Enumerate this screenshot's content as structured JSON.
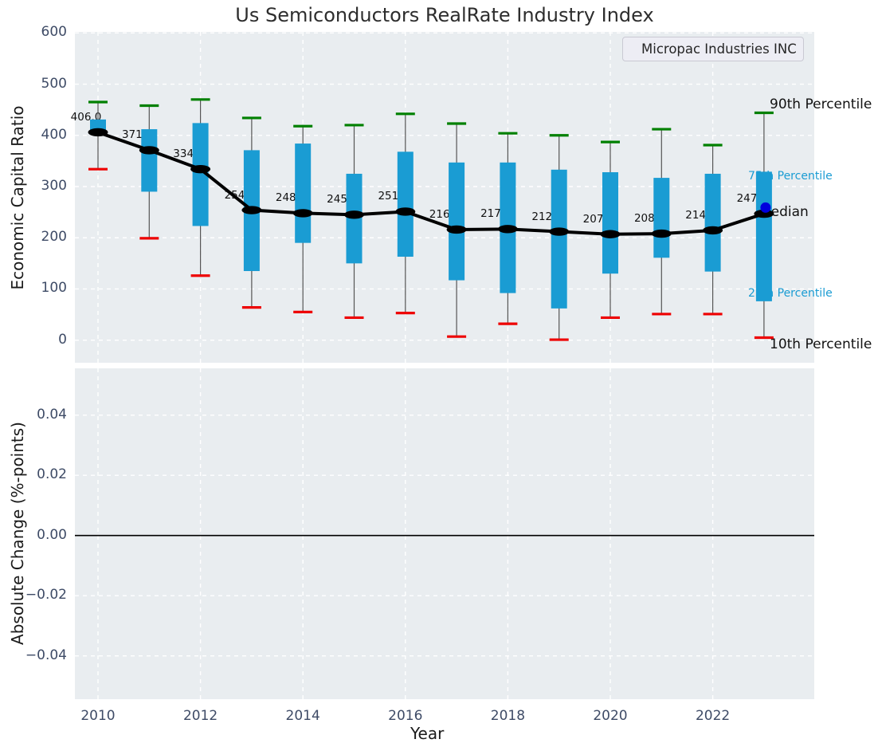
{
  "title": "Us Semiconductors RealRate Industry Index",
  "legend": {
    "label": "Micropac Industries INC",
    "line_color": "#0000f0"
  },
  "axes": {
    "x_label": "Year",
    "top_y_label": "Economic Capital Ratio",
    "bottom_y_label": "Absolute Change (%-points)"
  },
  "colors": {
    "box": "#1a9cd3",
    "p90_cap": "#008000",
    "p10_cap": "#ee0000",
    "whisker": "#555555",
    "median_line": "#000000",
    "company_dot": "#0000dd",
    "plot_bg": "#e9edf0",
    "grid": "#ffffff",
    "tick_text": "#3e4b66",
    "zero_line": "#000000",
    "cyan_label": "#1a9cd3"
  },
  "chart_data": [
    {
      "type": "boxplot-timeseries",
      "title": "Us Semiconductors RealRate Industry Index",
      "ylabel": "Economic Capital Ratio",
      "xlabel": "Year",
      "legend_entries": [
        "Micropac Industries INC"
      ],
      "ylim": [
        -44,
        600
      ],
      "xlim": [
        2009.5,
        2024
      ],
      "yticks": [
        600,
        500,
        400,
        300,
        200,
        100,
        0
      ],
      "xticks": [
        2010,
        2012,
        2014,
        2016,
        2018,
        2020,
        2022
      ],
      "grid": true,
      "series": [
        {
          "year": 2010,
          "p90": 465,
          "p75": 431,
          "median": 406,
          "p25": 402,
          "p10": 334,
          "label": "406.0"
        },
        {
          "year": 2011,
          "p90": 458,
          "p75": 412,
          "median": 371,
          "p25": 290,
          "p10": 199,
          "label": "371.0"
        },
        {
          "year": 2012,
          "p90": 470,
          "p75": 424,
          "median": 334,
          "p25": 223,
          "p10": 126,
          "label": "334.0"
        },
        {
          "year": 2013,
          "p90": 434,
          "p75": 371,
          "median": 254,
          "p25": 135,
          "p10": 64,
          "label": "254.0"
        },
        {
          "year": 2014,
          "p90": 418,
          "p75": 384,
          "median": 248,
          "p25": 190,
          "p10": 55,
          "label": "248.0"
        },
        {
          "year": 2015,
          "p90": 420,
          "p75": 325,
          "median": 245,
          "p25": 150,
          "p10": 44,
          "label": "245.0"
        },
        {
          "year": 2016,
          "p90": 442,
          "p75": 368,
          "median": 251,
          "p25": 163,
          "p10": 53,
          "label": "251.0"
        },
        {
          "year": 2017,
          "p90": 423,
          "p75": 347,
          "median": 216,
          "p25": 117,
          "p10": 7,
          "label": "216.0"
        },
        {
          "year": 2018,
          "p90": 404,
          "p75": 347,
          "median": 217,
          "p25": 92,
          "p10": 32,
          "label": "217.0"
        },
        {
          "year": 2019,
          "p90": 400,
          "p75": 333,
          "median": 212,
          "p25": 62,
          "p10": 1,
          "label": "212.0"
        },
        {
          "year": 2020,
          "p90": 387,
          "p75": 328,
          "median": 207,
          "p25": 130,
          "p10": 44,
          "label": "207.0"
        },
        {
          "year": 2021,
          "p90": 412,
          "p75": 317,
          "median": 208,
          "p25": 161,
          "p10": 51,
          "label": "208.0"
        },
        {
          "year": 2022,
          "p90": 381,
          "p75": 325,
          "median": 214.5,
          "p25": 134,
          "p10": 51,
          "label": "214.5"
        },
        {
          "year": 2023,
          "p90": 444,
          "p75": 329,
          "median": 247,
          "p25": 76,
          "p10": 5,
          "label": "247.0"
        }
      ],
      "company_point": {
        "name": "Micropac Industries INC",
        "year": 2023,
        "value": 259
      },
      "annotations": [
        {
          "text": "90th Percentile",
          "tone": "black"
        },
        {
          "text": "75th Percentile",
          "tone": "cyan"
        },
        {
          "text": "Median",
          "tone": "black"
        },
        {
          "text": "25th Percentile",
          "tone": "cyan"
        },
        {
          "text": "10th Percentile",
          "tone": "black"
        }
      ],
      "legend_position": "upper right"
    },
    {
      "type": "line",
      "ylabel": "Absolute Change (%-points)",
      "xlabel": "Year",
      "ylim": [
        -0.0545,
        0.0555
      ],
      "yticks": [
        0.04,
        0.02,
        0.0,
        -0.02,
        -0.04
      ],
      "ytick_labels": [
        "0.04",
        "0.02",
        "0.00",
        "−0.02",
        "−0.04"
      ],
      "xticks": [
        2010,
        2012,
        2014,
        2016,
        2018,
        2020,
        2022
      ],
      "grid": true,
      "series": [],
      "zero_line": 0.0
    }
  ]
}
